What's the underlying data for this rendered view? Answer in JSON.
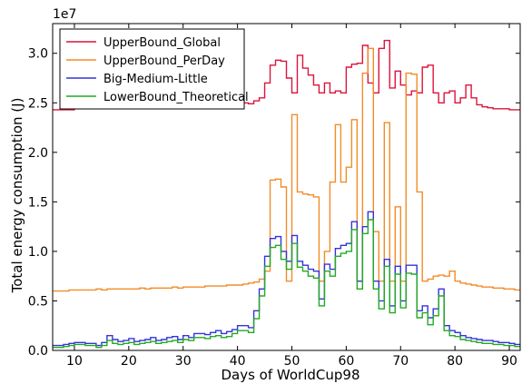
{
  "chart_data": {
    "type": "line",
    "step": true,
    "title": "",
    "xlabel": "Days of WorldCup98",
    "ylabel": "Total energy consumption (J)",
    "y_multiplier_label": "1e7",
    "xlim": [
      6,
      92
    ],
    "ylim": [
      0,
      3.3
    ],
    "xticks": [
      10,
      20,
      30,
      40,
      50,
      60,
      70,
      80,
      90
    ],
    "xtick_labels": [
      "10",
      "20",
      "30",
      "40",
      "50",
      "60",
      "70",
      "80",
      "90"
    ],
    "yticks": [
      0.0,
      0.5,
      1.0,
      1.5,
      2.0,
      2.5,
      3.0
    ],
    "ytick_labels": [
      "0.0",
      "0.5",
      "1.0",
      "1.5",
      "2.0",
      "2.5",
      "3.0"
    ],
    "grid": false,
    "legend_position": "top-left",
    "legend": [
      {
        "name": "UpperBound_Global",
        "color": "#dc143c"
      },
      {
        "name": "UpperBound_PerDay",
        "color": "#f28c28"
      },
      {
        "name": "Big-Medium-Little",
        "color": "#3333dd"
      },
      {
        "name": "LowerBound_Theoretical",
        "color": "#22aa22"
      }
    ],
    "x": [
      6,
      7,
      8,
      9,
      10,
      11,
      12,
      13,
      14,
      15,
      16,
      17,
      18,
      19,
      20,
      21,
      22,
      23,
      24,
      25,
      26,
      27,
      28,
      29,
      30,
      31,
      32,
      33,
      34,
      35,
      36,
      37,
      38,
      39,
      40,
      41,
      42,
      43,
      44,
      45,
      46,
      47,
      48,
      49,
      50,
      51,
      52,
      53,
      54,
      55,
      56,
      57,
      58,
      59,
      60,
      61,
      62,
      63,
      64,
      65,
      66,
      67,
      68,
      69,
      70,
      71,
      72,
      73,
      74,
      75,
      76,
      77,
      78,
      79,
      80,
      81,
      82,
      83,
      84,
      85,
      86,
      87,
      88,
      89,
      90,
      91,
      92
    ],
    "series": [
      {
        "name": "UpperBound_Global",
        "color": "#dc143c",
        "values": [
          2.43,
          2.43,
          2.43,
          2.43,
          2.44,
          2.44,
          2.44,
          2.44,
          2.44,
          2.44,
          2.44,
          2.45,
          2.44,
          2.44,
          2.45,
          2.45,
          2.45,
          2.45,
          2.45,
          2.46,
          2.45,
          2.46,
          2.46,
          2.46,
          2.47,
          2.46,
          2.47,
          2.47,
          2.48,
          2.47,
          2.48,
          2.48,
          2.49,
          2.48,
          2.49,
          2.5,
          2.49,
          2.52,
          2.55,
          2.7,
          2.88,
          2.93,
          2.92,
          2.75,
          2.6,
          2.98,
          2.85,
          2.78,
          2.68,
          2.6,
          2.7,
          2.6,
          2.62,
          2.6,
          2.86,
          2.89,
          2.9,
          3.08,
          2.7,
          2.6,
          3.05,
          3.13,
          2.65,
          2.82,
          2.68,
          2.58,
          2.62,
          2.6,
          2.86,
          2.88,
          2.6,
          2.5,
          2.6,
          2.62,
          2.5,
          2.55,
          2.68,
          2.55,
          2.48,
          2.46,
          2.45,
          2.44,
          2.44,
          2.44,
          2.43,
          2.43,
          2.43
        ]
      },
      {
        "name": "UpperBound_PerDay",
        "color": "#f28c28",
        "values": [
          0.6,
          0.6,
          0.6,
          0.61,
          0.61,
          0.61,
          0.61,
          0.61,
          0.62,
          0.61,
          0.62,
          0.62,
          0.62,
          0.62,
          0.62,
          0.62,
          0.63,
          0.62,
          0.63,
          0.63,
          0.63,
          0.63,
          0.64,
          0.63,
          0.64,
          0.64,
          0.64,
          0.64,
          0.65,
          0.65,
          0.65,
          0.65,
          0.66,
          0.66,
          0.66,
          0.67,
          0.68,
          0.69,
          0.72,
          0.8,
          1.72,
          1.73,
          1.65,
          0.7,
          2.38,
          1.6,
          1.58,
          1.57,
          1.55,
          0.7,
          1.0,
          1.7,
          2.28,
          1.7,
          1.85,
          2.33,
          0.7,
          2.8,
          3.05,
          1.2,
          0.7,
          2.3,
          0.7,
          1.45,
          0.7,
          2.8,
          2.79,
          1.6,
          0.7,
          0.72,
          0.75,
          0.76,
          0.75,
          0.8,
          0.7,
          0.68,
          0.67,
          0.66,
          0.65,
          0.64,
          0.64,
          0.63,
          0.63,
          0.62,
          0.62,
          0.61,
          0.61
        ]
      },
      {
        "name": "Big-Medium-Little",
        "color": "#3333dd",
        "values": [
          0.05,
          0.05,
          0.06,
          0.07,
          0.08,
          0.08,
          0.07,
          0.07,
          0.05,
          0.08,
          0.15,
          0.11,
          0.09,
          0.1,
          0.12,
          0.09,
          0.1,
          0.11,
          0.13,
          0.1,
          0.11,
          0.13,
          0.14,
          0.11,
          0.15,
          0.13,
          0.17,
          0.17,
          0.16,
          0.18,
          0.2,
          0.17,
          0.19,
          0.21,
          0.25,
          0.25,
          0.23,
          0.4,
          0.62,
          0.95,
          1.13,
          1.15,
          1.0,
          0.9,
          1.16,
          0.9,
          0.86,
          0.82,
          0.8,
          0.52,
          0.87,
          0.82,
          1.03,
          1.06,
          1.08,
          1.3,
          0.7,
          1.25,
          1.4,
          0.7,
          0.5,
          0.92,
          0.45,
          0.85,
          0.5,
          0.86,
          0.86,
          0.4,
          0.45,
          0.33,
          0.42,
          0.62,
          0.25,
          0.2,
          0.18,
          0.15,
          0.13,
          0.12,
          0.11,
          0.1,
          0.1,
          0.09,
          0.08,
          0.08,
          0.07,
          0.06,
          0.06
        ]
      },
      {
        "name": "LowerBound_Theoretical",
        "color": "#22aa22",
        "values": [
          0.03,
          0.03,
          0.04,
          0.05,
          0.06,
          0.06,
          0.05,
          0.05,
          0.03,
          0.05,
          0.1,
          0.07,
          0.06,
          0.07,
          0.08,
          0.06,
          0.07,
          0.08,
          0.09,
          0.07,
          0.08,
          0.09,
          0.1,
          0.08,
          0.11,
          0.1,
          0.13,
          0.13,
          0.12,
          0.14,
          0.15,
          0.13,
          0.14,
          0.17,
          0.2,
          0.2,
          0.18,
          0.32,
          0.55,
          0.85,
          1.04,
          1.06,
          0.92,
          0.82,
          1.08,
          0.84,
          0.8,
          0.75,
          0.73,
          0.45,
          0.8,
          0.75,
          0.95,
          0.98,
          1.0,
          1.22,
          0.62,
          1.18,
          1.32,
          0.62,
          0.42,
          0.85,
          0.38,
          0.77,
          0.43,
          0.78,
          0.77,
          0.33,
          0.38,
          0.26,
          0.35,
          0.55,
          0.2,
          0.15,
          0.14,
          0.11,
          0.1,
          0.09,
          0.08,
          0.07,
          0.07,
          0.06,
          0.06,
          0.05,
          0.05,
          0.04,
          0.04
        ]
      }
    ]
  }
}
